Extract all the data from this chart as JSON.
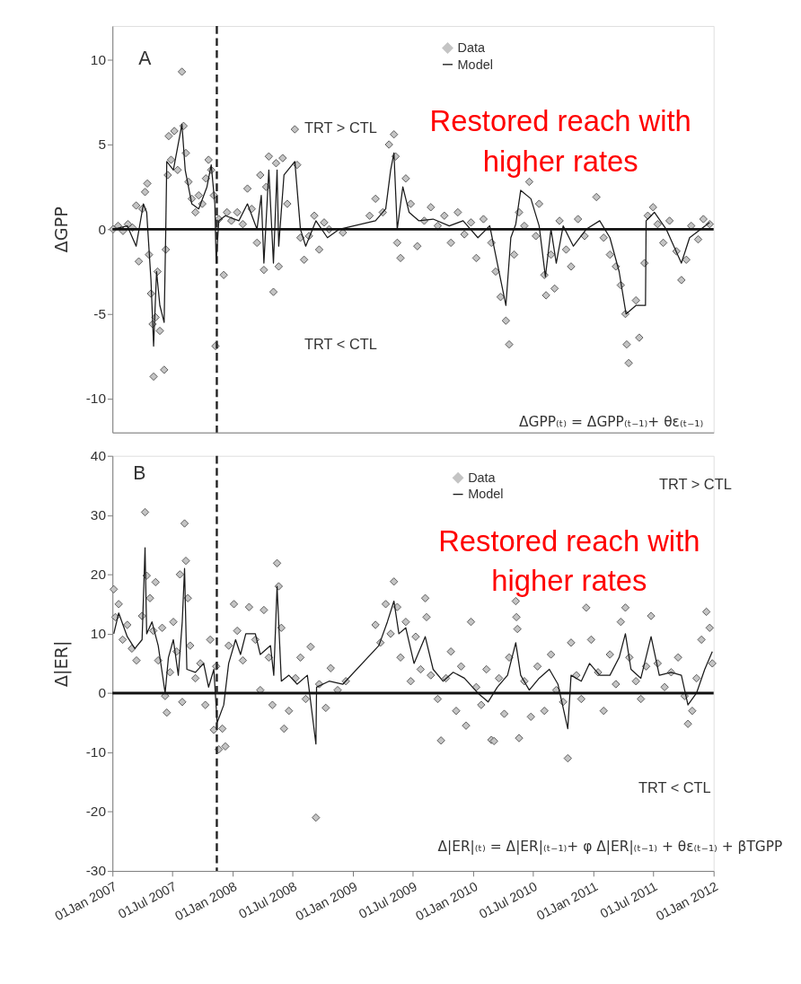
{
  "chart_data": [
    {
      "type": "scatter",
      "ylabel": "ΔGPP",
      "xlim": [
        "2007-01-01",
        "2012-01-01"
      ],
      "ylim": [
        -12,
        12
      ],
      "yticks": [
        -10,
        -5,
        0,
        5,
        10
      ],
      "tick_labels": "y",
      "legend": "top right",
      "annotations": [
        "A",
        "TRT > CTL",
        "TRT < CTL",
        "ΔGPP₍ₜ₎ = ΔGPP₍ₜ₋₁₎+ θε₍ₜ₋₁₎",
        "Restored reach with higher rates"
      ],
      "ref_lines": [
        {
          "axis": "y",
          "value": 0,
          "color": "#111111",
          "line_style": "solid"
        },
        {
          "axis": "x",
          "value": "2007-11-14",
          "color": "#222222",
          "line_style": "dashed"
        }
      ],
      "series": [
        {
          "name": "Data",
          "marker": "diamond",
          "color": "#c4c4c4",
          "x": [
            "2007-01-03",
            "2007-01-18",
            "2007-02-02",
            "2007-02-17",
            "2007-03-03",
            "2007-03-14",
            "2007-03-22",
            "2007-04-02",
            "2007-04-10",
            "2007-04-17",
            "2007-04-22",
            "2007-04-28",
            "2007-05-03",
            "2007-05-06",
            "2007-05-12",
            "2007-05-18",
            "2007-05-25",
            "2007-06-07",
            "2007-06-12",
            "2007-06-18",
            "2007-06-21",
            "2007-06-28",
            "2007-07-08",
            "2007-07-18",
            "2007-07-31",
            "2007-08-05",
            "2007-08-12",
            "2007-08-20",
            "2007-08-30",
            "2007-09-10",
            "2007-09-20",
            "2007-10-01",
            "2007-10-12",
            "2007-10-20",
            "2007-10-28",
            "2007-11-05",
            "2007-11-10",
            "2007-11-20",
            "2007-12-05",
            "2007-12-15",
            "2007-12-28",
            "2008-01-15",
            "2008-02-01",
            "2008-02-15",
            "2008-02-28",
            "2008-03-15",
            "2008-03-25",
            "2008-04-05",
            "2008-04-12",
            "2008-04-20",
            "2008-05-04",
            "2008-05-12",
            "2008-05-20",
            "2008-06-01",
            "2008-06-15",
            "2008-07-08",
            "2008-07-15",
            "2008-07-25",
            "2008-08-05",
            "2008-08-20",
            "2008-09-05",
            "2008-09-20",
            "2008-10-05",
            "2008-10-20",
            "2008-12-01",
            "2009-02-20",
            "2009-03-10",
            "2009-04-01",
            "2009-04-20",
            "2009-05-05",
            "2009-05-10",
            "2009-05-15",
            "2009-05-25",
            "2009-06-10",
            "2009-06-25",
            "2009-07-15",
            "2009-08-05",
            "2009-08-25",
            "2009-09-15",
            "2009-10-05",
            "2009-10-25",
            "2009-11-15",
            "2009-12-05",
            "2009-12-25",
            "2010-01-10",
            "2010-02-01",
            "2010-02-25",
            "2010-03-10",
            "2010-03-25",
            "2010-04-10",
            "2010-04-20",
            "2010-05-05",
            "2010-05-20",
            "2010-06-05",
            "2010-06-20",
            "2010-07-10",
            "2010-07-20",
            "2010-08-05",
            "2010-08-10",
            "2010-08-25",
            "2010-09-05",
            "2010-09-20",
            "2010-10-10",
            "2010-10-25",
            "2010-11-15",
            "2010-12-05",
            "2011-01-10",
            "2011-02-01",
            "2011-02-20",
            "2011-03-10",
            "2011-03-25",
            "2011-04-08",
            "2011-04-12",
            "2011-04-18",
            "2011-05-10",
            "2011-05-20",
            "2011-06-05",
            "2011-06-15",
            "2011-07-01",
            "2011-07-15",
            "2011-08-01",
            "2011-08-20",
            "2011-09-10",
            "2011-09-25",
            "2011-10-10",
            "2011-10-25",
            "2011-11-15",
            "2011-12-01",
            "2011-12-20"
          ],
          "values": [
            0.0,
            0.2,
            -0.1,
            0.3,
            0.1,
            1.4,
            -1.9,
            1.2,
            2.2,
            2.7,
            -1.5,
            -3.8,
            -5.6,
            -8.7,
            -5.2,
            -2.5,
            -6.0,
            -8.3,
            -1.2,
            3.2,
            5.5,
            4.1,
            5.8,
            3.5,
            9.3,
            6.1,
            4.5,
            2.8,
            1.8,
            1.0,
            2.0,
            1.5,
            3.0,
            4.1,
            3.5,
            2.0,
            -6.9,
            0.6,
            -2.7,
            1.0,
            0.5,
            1.0,
            0.3,
            2.4,
            1.2,
            -0.8,
            3.2,
            -2.4,
            2.5,
            4.3,
            -3.7,
            3.9,
            -2.2,
            4.2,
            1.5,
            5.9,
            3.8,
            -0.5,
            -1.8,
            -0.4,
            0.8,
            -1.2,
            0.4,
            0.0,
            -0.2,
            0.8,
            1.8,
            1.0,
            5.0,
            5.6,
            4.3,
            -0.8,
            -1.7,
            3.0,
            1.5,
            -1.0,
            0.5,
            1.3,
            0.2,
            0.8,
            -0.8,
            1.0,
            -0.3,
            0.4,
            -1.7,
            0.6,
            -0.8,
            -2.5,
            -4.0,
            -5.4,
            -6.8,
            -1.5,
            1.0,
            0.2,
            2.8,
            -0.4,
            1.5,
            -2.7,
            -3.9,
            -1.5,
            -3.5,
            0.5,
            -1.2,
            -2.2,
            0.6,
            -0.4,
            1.9,
            -0.5,
            -1.5,
            -2.2,
            -3.3,
            -5.0,
            -6.8,
            -7.9,
            -4.2,
            -6.4,
            -2.0,
            0.8,
            1.3,
            0.3,
            -0.8,
            0.5,
            -1.3,
            -3.0,
            -1.8,
            0.2,
            -0.6,
            0.6,
            0.3
          ]
        },
        {
          "name": "Model",
          "type": "line",
          "color": "#1a1a1a",
          "x": [
            "2007-01-03",
            "2007-02-15",
            "2007-03-14",
            "2007-04-05",
            "2007-04-15",
            "2007-04-28",
            "2007-05-06",
            "2007-05-15",
            "2007-05-25",
            "2007-06-07",
            "2007-06-12",
            "2007-06-15",
            "2007-07-05",
            "2007-07-31",
            "2007-08-10",
            "2007-08-30",
            "2007-09-20",
            "2007-10-15",
            "2007-10-28",
            "2007-11-08",
            "2007-11-12",
            "2007-11-20",
            "2007-12-10",
            "2008-01-20",
            "2008-02-15",
            "2008-03-15",
            "2008-03-28",
            "2008-04-05",
            "2008-04-20",
            "2008-05-04",
            "2008-05-15",
            "2008-05-20",
            "2008-06-05",
            "2008-07-08",
            "2008-07-25",
            "2008-08-10",
            "2008-09-10",
            "2008-10-15",
            "2008-11-20",
            "2009-03-10",
            "2009-04-10",
            "2009-04-25",
            "2009-05-05",
            "2009-05-15",
            "2009-06-01",
            "2009-06-20",
            "2009-07-20",
            "2009-09-01",
            "2009-10-20",
            "2009-12-01",
            "2010-01-15",
            "2010-02-20",
            "2010-03-20",
            "2010-04-10",
            "2010-04-25",
            "2010-05-10",
            "2010-05-25",
            "2010-06-25",
            "2010-07-20",
            "2010-08-08",
            "2010-08-25",
            "2010-09-10",
            "2010-10-01",
            "2010-11-01",
            "2010-12-10",
            "2011-01-20",
            "2011-02-20",
            "2011-03-20",
            "2011-04-10",
            "2011-05-10",
            "2011-06-08",
            "2011-06-10",
            "2011-07-05",
            "2011-08-10",
            "2011-09-25",
            "2011-10-20",
            "2011-12-20"
          ],
          "values": [
            0.0,
            0.2,
            -1.0,
            1.5,
            1.0,
            -3.0,
            -6.9,
            -2.5,
            -4.5,
            -5.5,
            0.0,
            4.0,
            3.5,
            6.2,
            3.5,
            1.5,
            1.2,
            2.5,
            3.8,
            1.5,
            -2.0,
            0.5,
            0.8,
            0.5,
            1.5,
            0.0,
            2.0,
            -2.0,
            3.5,
            -2.0,
            3.5,
            -1.0,
            3.2,
            4.0,
            0.0,
            -1.0,
            0.5,
            -0.5,
            0.0,
            0.5,
            1.2,
            3.5,
            4.5,
            0.0,
            2.5,
            1.0,
            0.5,
            0.6,
            0.2,
            0.5,
            -0.5,
            0.2,
            -2.5,
            -4.5,
            -0.5,
            0.3,
            2.3,
            1.8,
            0.2,
            -2.8,
            0.0,
            -2.0,
            0.2,
            -1.0,
            0.0,
            0.5,
            -0.5,
            -2.5,
            -5.0,
            -4.5,
            -4.5,
            0.5,
            1.0,
            0.0,
            -2.0,
            -0.5,
            0.4
          ]
        }
      ]
    },
    {
      "type": "scatter",
      "ylabel": "Δ|ER|",
      "xlim": [
        "2007-01-01",
        "2012-01-01"
      ],
      "ylim": [
        -30,
        40
      ],
      "yticks": [
        -30,
        -20,
        -10,
        0,
        10,
        20,
        30,
        40
      ],
      "legend": "top right",
      "xticks": [
        {
          "value": "2007-01-01",
          "label": "01Jan 2007"
        },
        {
          "value": "2007-07-01",
          "label": "01Jul 2007"
        },
        {
          "value": "2008-01-01",
          "label": "01Jan 2008"
        },
        {
          "value": "2008-07-01",
          "label": "01Jul 2008"
        },
        {
          "value": "2009-01-01",
          "label": "01Jan 2009"
        },
        {
          "value": "2009-07-01",
          "label": "01Jul 2009"
        },
        {
          "value": "2010-01-01",
          "label": "01Jan 2010"
        },
        {
          "value": "2010-07-01",
          "label": "01Jul 2010"
        },
        {
          "value": "2011-01-01",
          "label": "01Jan 2011"
        },
        {
          "value": "2011-07-01",
          "label": "01Jul 2011"
        },
        {
          "value": "2012-01-01",
          "label": "01Jan 2012"
        }
      ],
      "annotations": [
        "B",
        "TRT > CTL",
        "TRT < CTL",
        "Δ|ER|₍ₜ₎ = Δ|ER|₍ₜ₋₁₎+ φ Δ|ER|₍ₜ₋₁₎ + θε₍ₜ₋₁₎ + βTGPP",
        "Restored reach with higher rates"
      ],
      "ref_lines": [
        {
          "axis": "y",
          "value": 0,
          "color": "#111111",
          "line_style": "solid"
        },
        {
          "axis": "x",
          "value": "2007-11-14",
          "color": "#222222",
          "line_style": "dashed"
        }
      ],
      "series": [
        {
          "name": "Data",
          "marker": "diamond",
          "color": "#c4c4c4",
          "x": [
            "2007-01-05",
            "2007-01-10",
            "2007-01-20",
            "2007-02-01",
            "2007-02-15",
            "2007-03-01",
            "2007-03-15",
            "2007-04-01",
            "2007-04-10",
            "2007-04-15",
            "2007-04-25",
            "2007-05-05",
            "2007-05-12",
            "2007-05-20",
            "2007-06-01",
            "2007-06-10",
            "2007-06-15",
            "2007-06-25",
            "2007-07-05",
            "2007-07-15",
            "2007-07-25",
            "2007-08-01",
            "2007-08-08",
            "2007-08-12",
            "2007-08-18",
            "2007-08-25",
            "2007-09-10",
            "2007-09-25",
            "2007-10-10",
            "2007-10-25",
            "2007-11-05",
            "2007-11-12",
            "2007-11-20",
            "2007-12-01",
            "2007-12-10",
            "2007-12-20",
            "2008-01-05",
            "2008-01-15",
            "2008-02-01",
            "2008-02-20",
            "2008-03-10",
            "2008-03-25",
            "2008-04-05",
            "2008-04-20",
            "2008-05-01",
            "2008-05-15",
            "2008-05-20",
            "2008-05-28",
            "2008-06-05",
            "2008-06-20",
            "2008-07-10",
            "2008-07-25",
            "2008-08-10",
            "2008-08-25",
            "2008-09-10",
            "2008-09-20",
            "2008-10-10",
            "2008-10-25",
            "2008-11-15",
            "2008-12-10",
            "2009-03-10",
            "2009-03-25",
            "2009-04-10",
            "2009-04-25",
            "2009-05-05",
            "2009-05-15",
            "2009-05-25",
            "2009-06-10",
            "2009-06-25",
            "2009-07-10",
            "2009-07-25",
            "2009-08-08",
            "2009-08-12",
            "2009-08-25",
            "2009-09-15",
            "2009-09-25",
            "2009-10-10",
            "2009-10-25",
            "2009-11-10",
            "2009-11-25",
            "2009-12-10",
            "2009-12-25",
            "2010-01-10",
            "2010-01-25",
            "2010-02-10",
            "2010-02-25",
            "2010-03-05",
            "2010-03-20",
            "2010-04-05",
            "2010-04-20",
            "2010-05-10",
            "2010-05-12",
            "2010-05-15",
            "2010-05-20",
            "2010-06-05",
            "2010-06-25",
            "2010-07-15",
            "2010-08-05",
            "2010-08-25",
            "2010-09-10",
            "2010-10-01",
            "2010-10-15",
            "2010-10-25",
            "2010-11-10",
            "2010-11-25",
            "2010-12-10",
            "2010-12-25",
            "2011-01-15",
            "2011-02-01",
            "2011-02-20",
            "2011-03-10",
            "2011-03-25",
            "2011-04-08",
            "2011-04-20",
            "2011-05-10",
            "2011-05-25",
            "2011-06-10",
            "2011-06-25",
            "2011-07-15",
            "2011-08-05",
            "2011-08-25",
            "2011-09-15",
            "2011-10-05",
            "2011-10-15",
            "2011-10-28",
            "2011-11-10",
            "2011-11-25",
            "2011-12-10",
            "2011-12-20",
            "2011-12-28"
          ],
          "values": [
            17.5,
            12.8,
            15.0,
            9.0,
            11.5,
            7.5,
            5.5,
            13.0,
            30.5,
            19.8,
            16.0,
            10.5,
            18.7,
            5.5,
            11.0,
            -0.5,
            -3.3,
            3.5,
            12.0,
            7.0,
            20.0,
            -1.5,
            28.6,
            22.3,
            16.0,
            8.0,
            2.5,
            5.0,
            -2.0,
            9.0,
            -6.2,
            4.5,
            -9.5,
            -6.0,
            -9.0,
            8.0,
            15.0,
            10.5,
            5.5,
            14.5,
            9.0,
            0.5,
            14.0,
            6.0,
            -2.0,
            21.9,
            18.0,
            11.0,
            -6.0,
            -3.0,
            2.5,
            6.0,
            -1.0,
            7.8,
            -21.0,
            1.5,
            -2.5,
            4.2,
            0.5,
            2.0,
            11.5,
            8.5,
            15.0,
            10.0,
            18.8,
            14.5,
            6.0,
            12.0,
            2.0,
            9.5,
            4.0,
            16.0,
            12.8,
            3.0,
            -1.0,
            -8.0,
            2.5,
            7.0,
            -3.0,
            4.5,
            -5.5,
            12.0,
            1.0,
            -2.0,
            4.0,
            -7.9,
            -8.1,
            2.5,
            -3.5,
            6.0,
            15.5,
            12.8,
            10.8,
            -7.6,
            2.0,
            -4.0,
            4.5,
            -3.0,
            6.5,
            0.5,
            -1.5,
            -11.0,
            8.5,
            3.0,
            -1.0,
            14.4,
            9.0,
            3.5,
            -3.0,
            6.5,
            1.5,
            12.0,
            14.4,
            6.0,
            2.0,
            -1.0,
            4.5,
            13.0,
            5.0,
            1.0,
            3.5,
            6.0,
            -0.5,
            -5.2,
            -3.0,
            2.5,
            9.0,
            13.7,
            11.0,
            5.0
          ]
        },
        {
          "name": "Model",
          "type": "line",
          "color": "#1a1a1a",
          "x": [
            "2007-01-05",
            "2007-01-20",
            "2007-02-15",
            "2007-03-10",
            "2007-04-01",
            "2007-04-10",
            "2007-04-15",
            "2007-05-01",
            "2007-05-20",
            "2007-06-10",
            "2007-06-20",
            "2007-07-05",
            "2007-07-20",
            "2007-08-01",
            "2007-08-08",
            "2007-08-15",
            "2007-09-10",
            "2007-10-05",
            "2007-10-20",
            "2007-11-05",
            "2007-11-15",
            "2007-12-05",
            "2007-12-20",
            "2008-01-10",
            "2008-01-25",
            "2008-02-10",
            "2008-03-10",
            "2008-03-25",
            "2008-04-25",
            "2008-05-05",
            "2008-05-15",
            "2008-05-28",
            "2008-06-20",
            "2008-07-15",
            "2008-08-15",
            "2008-09-10",
            "2008-09-12",
            "2008-10-20",
            "2008-12-01",
            "2009-03-20",
            "2009-04-15",
            "2009-05-05",
            "2009-05-20",
            "2009-06-10",
            "2009-07-05",
            "2009-08-08",
            "2009-09-01",
            "2009-10-01",
            "2009-11-01",
            "2009-12-05",
            "2010-01-15",
            "2010-02-15",
            "2010-03-15",
            "2010-04-15",
            "2010-05-10",
            "2010-05-25",
            "2010-06-20",
            "2010-07-20",
            "2010-08-20",
            "2010-09-15",
            "2010-10-15",
            "2010-10-25",
            "2010-11-25",
            "2010-12-20",
            "2011-01-20",
            "2011-02-20",
            "2011-03-20",
            "2011-04-08",
            "2011-04-25",
            "2011-05-25",
            "2011-06-25",
            "2011-07-20",
            "2011-08-25",
            "2011-09-25",
            "2011-10-15",
            "2011-11-10",
            "2011-12-05",
            "2011-12-28"
          ],
          "values": [
            10.0,
            13.5,
            9.5,
            7.5,
            9.0,
            24.5,
            10.0,
            12.0,
            8.0,
            0.0,
            6.0,
            9.0,
            3.0,
            12.0,
            21.0,
            4.0,
            3.5,
            5.0,
            1.0,
            4.0,
            -5.0,
            -2.0,
            5.0,
            9.0,
            6.5,
            10.0,
            10.0,
            6.5,
            8.0,
            3.0,
            18.0,
            2.0,
            3.0,
            1.5,
            3.0,
            -8.6,
            1.0,
            2.0,
            1.5,
            8.0,
            12.0,
            15.5,
            10.0,
            11.0,
            5.0,
            9.5,
            4.0,
            2.0,
            3.5,
            2.5,
            0.0,
            -1.5,
            1.0,
            3.0,
            8.5,
            3.0,
            0.5,
            2.5,
            4.0,
            1.5,
            -6.0,
            3.0,
            2.0,
            5.0,
            3.0,
            3.0,
            6.0,
            10.0,
            4.0,
            2.5,
            9.5,
            3.0,
            3.5,
            3.0,
            -2.0,
            0.0,
            4.0,
            7.0
          ]
        }
      ]
    }
  ]
}
